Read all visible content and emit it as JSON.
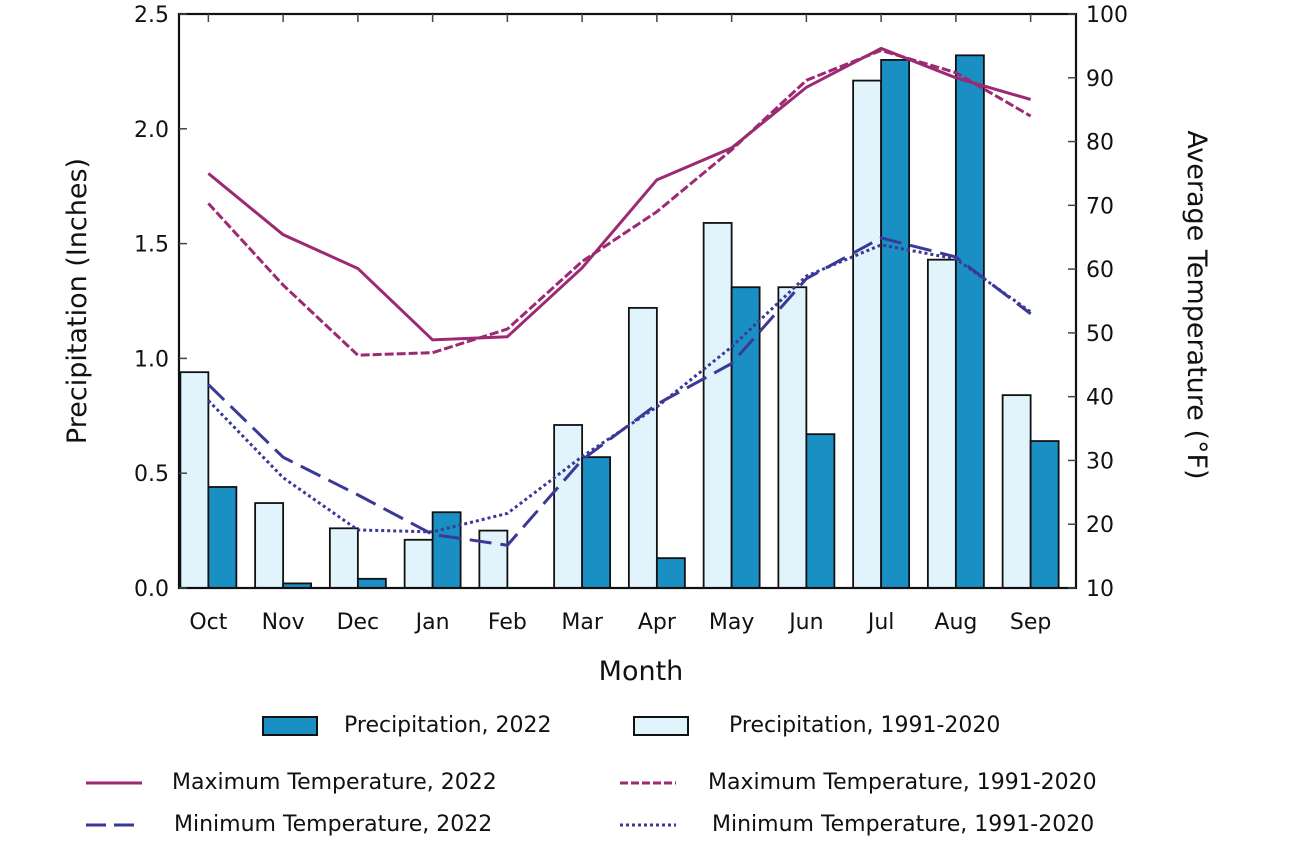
{
  "chart_data": {
    "type": "bar",
    "title": "",
    "xlabel": "Month",
    "ylabel": "Precipitation (Inches)",
    "ylabel_right": "Average Temperature (°F)",
    "categories": [
      "Oct",
      "Nov",
      "Dec",
      "Jan",
      "Feb",
      "Mar",
      "Apr",
      "May",
      "Jun",
      "Jul",
      "Aug",
      "Sep"
    ],
    "ylim": [
      0,
      2.5
    ],
    "ylim_right": [
      10,
      100
    ],
    "yticks": [
      "0.0",
      "0.5",
      "1.0",
      "1.5",
      "2.0",
      "2.5"
    ],
    "yticks_right": [
      "10",
      "20",
      "30",
      "40",
      "50",
      "60",
      "70",
      "80",
      "90",
      "100"
    ],
    "grid": false,
    "legend_position": "bottom",
    "bar_series": [
      {
        "name": "Precipitation, 1991-2020",
        "color": "#e1f3fb",
        "values": [
          0.94,
          0.37,
          0.26,
          0.21,
          0.25,
          0.71,
          1.22,
          1.59,
          1.31,
          2.21,
          1.43,
          0.84
        ]
      },
      {
        "name": "Precipitation, 2022",
        "color": "#1a8fc4",
        "values": [
          0.44,
          0.02,
          0.04,
          0.33,
          0.0,
          0.57,
          0.13,
          1.31,
          0.67,
          2.3,
          2.32,
          0.64
        ]
      }
    ],
    "line_series": [
      {
        "name": "Maximum Temperature, 2022",
        "color": "#9c2a72",
        "style": "solid",
        "axis": "right",
        "values": [
          75.0,
          65.4,
          60.1,
          48.9,
          49.4,
          60.2,
          74.0,
          79.0,
          88.5,
          94.6,
          90.0,
          86.6
        ]
      },
      {
        "name": "Maximum Temperature, 1991-2020",
        "color": "#9c2a72",
        "style": "dashed",
        "axis": "right",
        "values": [
          70.3,
          57.5,
          46.5,
          46.9,
          50.6,
          61.2,
          69.0,
          78.7,
          89.6,
          94.3,
          90.8,
          84.0
        ]
      },
      {
        "name": "Minimum Temperature, 2022",
        "color": "#3a3a96",
        "style": "longdash",
        "axis": "right",
        "values": [
          41.9,
          30.5,
          24.6,
          18.4,
          16.7,
          30.1,
          38.8,
          45.2,
          58.5,
          64.9,
          61.9,
          53.0
        ]
      },
      {
        "name": "Minimum Temperature, 1991-2020",
        "color": "#3a3a96",
        "style": "dotted",
        "axis": "right",
        "values": [
          39.4,
          27.3,
          19.1,
          18.8,
          21.7,
          30.6,
          38.4,
          47.8,
          58.9,
          63.8,
          61.6,
          53.3
        ]
      }
    ]
  },
  "legend": {
    "items": [
      {
        "label": "Precipitation, 2022"
      },
      {
        "label": "Precipitation, 1991-2020"
      },
      {
        "label": "Maximum Temperature, 2022"
      },
      {
        "label": "Maximum Temperature, 1991-2020"
      },
      {
        "label": "Minimum Temperature, 2022"
      },
      {
        "label": "Minimum Temperature, 1991-2020"
      }
    ]
  }
}
